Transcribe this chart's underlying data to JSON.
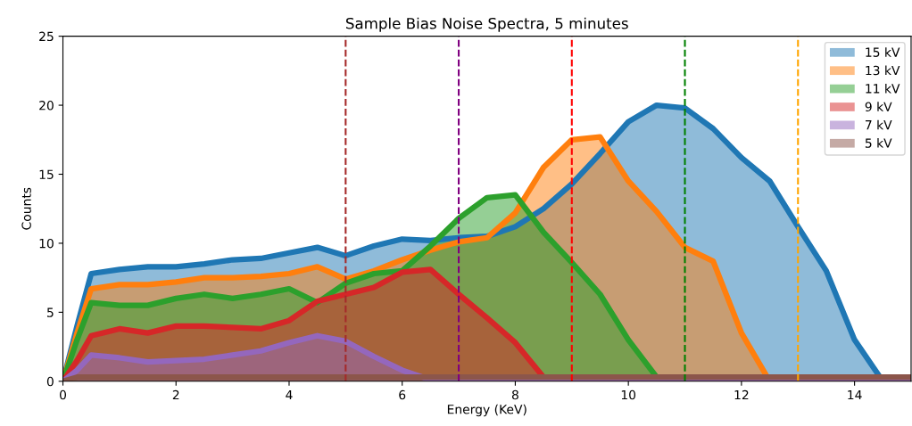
{
  "chart_data": {
    "type": "area",
    "title": "Sample Bias Noise Spectra, 5 minutes",
    "xlabel": "Energy (KeV)",
    "ylabel": "Counts",
    "x": [
      0,
      0.25,
      0.5,
      1,
      1.5,
      2,
      2.5,
      3,
      3.5,
      4,
      4.5,
      5,
      5.5,
      6,
      6.5,
      7,
      7.5,
      8,
      8.5,
      9,
      9.5,
      10,
      10.5,
      11,
      11.5,
      12,
      12.5,
      13,
      13.5,
      14,
      14.5,
      15
    ],
    "xlim": [
      0,
      15
    ],
    "ylim": [
      0,
      25
    ],
    "xticks": [
      0,
      2,
      4,
      6,
      8,
      10,
      12,
      14
    ],
    "yticks": [
      0,
      5,
      10,
      15,
      20,
      25
    ],
    "grid": false,
    "legend": "top right",
    "line_style": "solid",
    "series": [
      {
        "name": "15 kV",
        "color": "#1f77b4",
        "values": [
          0,
          4,
          7.8,
          8.1,
          8.3,
          8.3,
          8.5,
          8.8,
          8.9,
          9.3,
          9.7,
          9.1,
          9.8,
          10.3,
          10.2,
          10.4,
          10.5,
          11.2,
          12.5,
          14.3,
          16.5,
          18.8,
          20.0,
          19.8,
          18.3,
          16.2,
          14.5,
          11.2,
          8,
          3,
          0,
          0
        ]
      },
      {
        "name": "13 kV",
        "color": "#ff7f0e",
        "values": [
          0,
          3.5,
          6.7,
          7,
          7,
          7.2,
          7.5,
          7.5,
          7.6,
          7.8,
          8.3,
          7.4,
          8.0,
          8.8,
          9.5,
          10.1,
          10.4,
          12.2,
          15.5,
          17.5,
          17.7,
          14.5,
          12.3,
          9.7,
          8.7,
          3.5,
          0,
          0,
          0,
          0,
          0,
          0
        ]
      },
      {
        "name": "11 kV",
        "color": "#2ca02c",
        "values": [
          0,
          3,
          5.7,
          5.5,
          5.5,
          6.0,
          6.3,
          6.0,
          6.3,
          6.7,
          5.7,
          7.1,
          7.8,
          8.0,
          9.8,
          11.8,
          13.3,
          13.5,
          10.8,
          8.6,
          6.3,
          3,
          0.3,
          0,
          0,
          0,
          0,
          0,
          0,
          0,
          0,
          0
        ]
      },
      {
        "name": "9 kV",
        "color": "#d62728",
        "values": [
          0,
          1.5,
          3.3,
          3.8,
          3.5,
          4.0,
          4.0,
          3.9,
          3.8,
          4.4,
          5.8,
          6.3,
          6.8,
          7.9,
          8.1,
          6.3,
          4.6,
          2.8,
          0.3,
          0,
          0,
          0,
          0,
          0,
          0,
          0,
          0,
          0,
          0,
          0,
          0,
          0
        ]
      },
      {
        "name": "7 kV",
        "color": "#9467bd",
        "values": [
          0,
          0.8,
          1.9,
          1.7,
          1.4,
          1.5,
          1.6,
          1.9,
          2.2,
          2.8,
          3.3,
          2.9,
          1.8,
          0.8,
          0.1,
          0,
          0,
          0,
          0,
          0,
          0,
          0,
          0,
          0,
          0,
          0,
          0,
          0,
          0,
          0,
          0,
          0
        ]
      },
      {
        "name": "5 kV",
        "color": "#8c564b",
        "values": [
          0,
          0.3,
          0.3,
          0.3,
          0.3,
          0.3,
          0.3,
          0.3,
          0.3,
          0.3,
          0.3,
          0.3,
          0.3,
          0.3,
          0.3,
          0.3,
          0.3,
          0.3,
          0.3,
          0.3,
          0.3,
          0.3,
          0.3,
          0.3,
          0.3,
          0.3,
          0.3,
          0.3,
          0.3,
          0.3,
          0.3,
          0.3
        ]
      }
    ],
    "ref_lines": [
      {
        "axis": "x",
        "value": 5,
        "color": "#a52a2a",
        "line_style": "dashed"
      },
      {
        "axis": "x",
        "value": 7,
        "color": "#800080",
        "line_style": "dashed"
      },
      {
        "axis": "x",
        "value": 9,
        "color": "#ff0000",
        "line_style": "dashed"
      },
      {
        "axis": "x",
        "value": 11,
        "color": "#008000",
        "line_style": "dashed"
      },
      {
        "axis": "x",
        "value": 13,
        "color": "#ffa500",
        "line_style": "dashed"
      }
    ]
  }
}
